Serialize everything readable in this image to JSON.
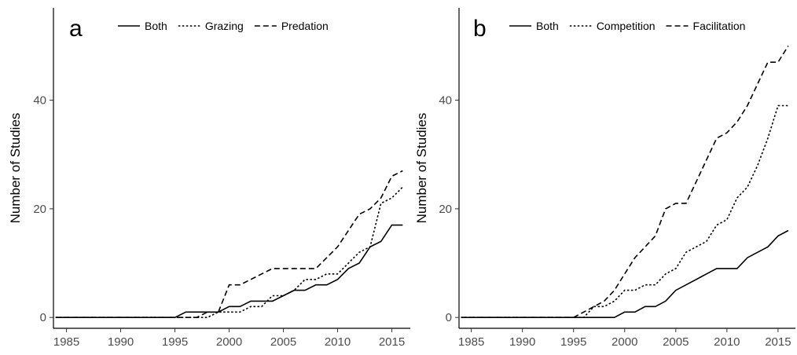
{
  "chart_data": [
    {
      "type": "line",
      "panel_label": "a",
      "ylabel": "Number of Studies",
      "xlabel": "",
      "xlim": [
        1983.8,
        2016.7
      ],
      "ylim": [
        -2,
        57
      ],
      "xticks": [
        1985,
        1990,
        1995,
        2000,
        2005,
        2010,
        2015
      ],
      "yticks": [
        0,
        20,
        40
      ],
      "grid": false,
      "legend_position": "top",
      "x": [
        1984,
        1985,
        1986,
        1987,
        1988,
        1989,
        1990,
        1991,
        1992,
        1993,
        1994,
        1995,
        1996,
        1997,
        1998,
        1999,
        2000,
        2001,
        2002,
        2003,
        2004,
        2005,
        2006,
        2007,
        2008,
        2009,
        2010,
        2011,
        2012,
        2013,
        2014,
        2015,
        2016
      ],
      "series": [
        {
          "name": "Both",
          "dash": "solid",
          "values": [
            0,
            0,
            0,
            0,
            0,
            0,
            0,
            0,
            0,
            0,
            0,
            0,
            1,
            1,
            1,
            1,
            2,
            2,
            3,
            3,
            3,
            4,
            5,
            5,
            6,
            6,
            7,
            9,
            10,
            13,
            14,
            17,
            17
          ]
        },
        {
          "name": "Grazing",
          "dash": "dotted",
          "values": [
            0,
            0,
            0,
            0,
            0,
            0,
            0,
            0,
            0,
            0,
            0,
            0,
            0,
            0,
            0,
            1,
            1,
            1,
            2,
            2,
            4,
            4,
            5,
            7,
            7,
            8,
            8,
            10,
            12,
            13,
            21,
            22,
            24
          ]
        },
        {
          "name": "Predation",
          "dash": "dashed",
          "values": [
            0,
            0,
            0,
            0,
            0,
            0,
            0,
            0,
            0,
            0,
            0,
            0,
            0,
            0,
            1,
            1,
            6,
            6,
            7,
            8,
            9,
            9,
            9,
            9,
            9,
            11,
            13,
            16,
            19,
            20,
            22,
            26,
            27
          ]
        }
      ]
    },
    {
      "type": "line",
      "panel_label": "b",
      "ylabel": "Number of Studies",
      "xlabel": "",
      "xlim": [
        1983.8,
        2016.7
      ],
      "ylim": [
        -2,
        57
      ],
      "xticks": [
        1985,
        1990,
        1995,
        2000,
        2005,
        2010,
        2015
      ],
      "yticks": [
        0,
        20,
        40
      ],
      "grid": false,
      "legend_position": "top",
      "x": [
        1984,
        1985,
        1986,
        1987,
        1988,
        1989,
        1990,
        1991,
        1992,
        1993,
        1994,
        1995,
        1996,
        1997,
        1998,
        1999,
        2000,
        2001,
        2002,
        2003,
        2004,
        2005,
        2006,
        2007,
        2008,
        2009,
        2010,
        2011,
        2012,
        2013,
        2014,
        2015,
        2016
      ],
      "series": [
        {
          "name": "Both",
          "dash": "solid",
          "values": [
            0,
            0,
            0,
            0,
            0,
            0,
            0,
            0,
            0,
            0,
            0,
            0,
            0,
            0,
            0,
            0,
            1,
            1,
            2,
            2,
            3,
            5,
            6,
            7,
            8,
            9,
            9,
            9,
            11,
            12,
            13,
            15,
            16
          ]
        },
        {
          "name": "Competition",
          "dash": "dotted",
          "values": [
            0,
            0,
            0,
            0,
            0,
            0,
            0,
            0,
            0,
            0,
            0,
            0,
            0,
            2,
            2,
            3,
            5,
            5,
            6,
            6,
            8,
            9,
            12,
            13,
            14,
            17,
            18,
            22,
            24,
            28,
            33,
            39,
            39
          ]
        },
        {
          "name": "Facilitation",
          "dash": "dashed",
          "values": [
            0,
            0,
            0,
            0,
            0,
            0,
            0,
            0,
            0,
            0,
            0,
            0,
            1,
            2,
            3,
            5,
            8,
            11,
            13,
            15,
            20,
            21,
            21,
            25,
            29,
            33,
            34,
            36,
            39,
            43,
            47,
            47,
            50
          ]
        }
      ]
    }
  ]
}
